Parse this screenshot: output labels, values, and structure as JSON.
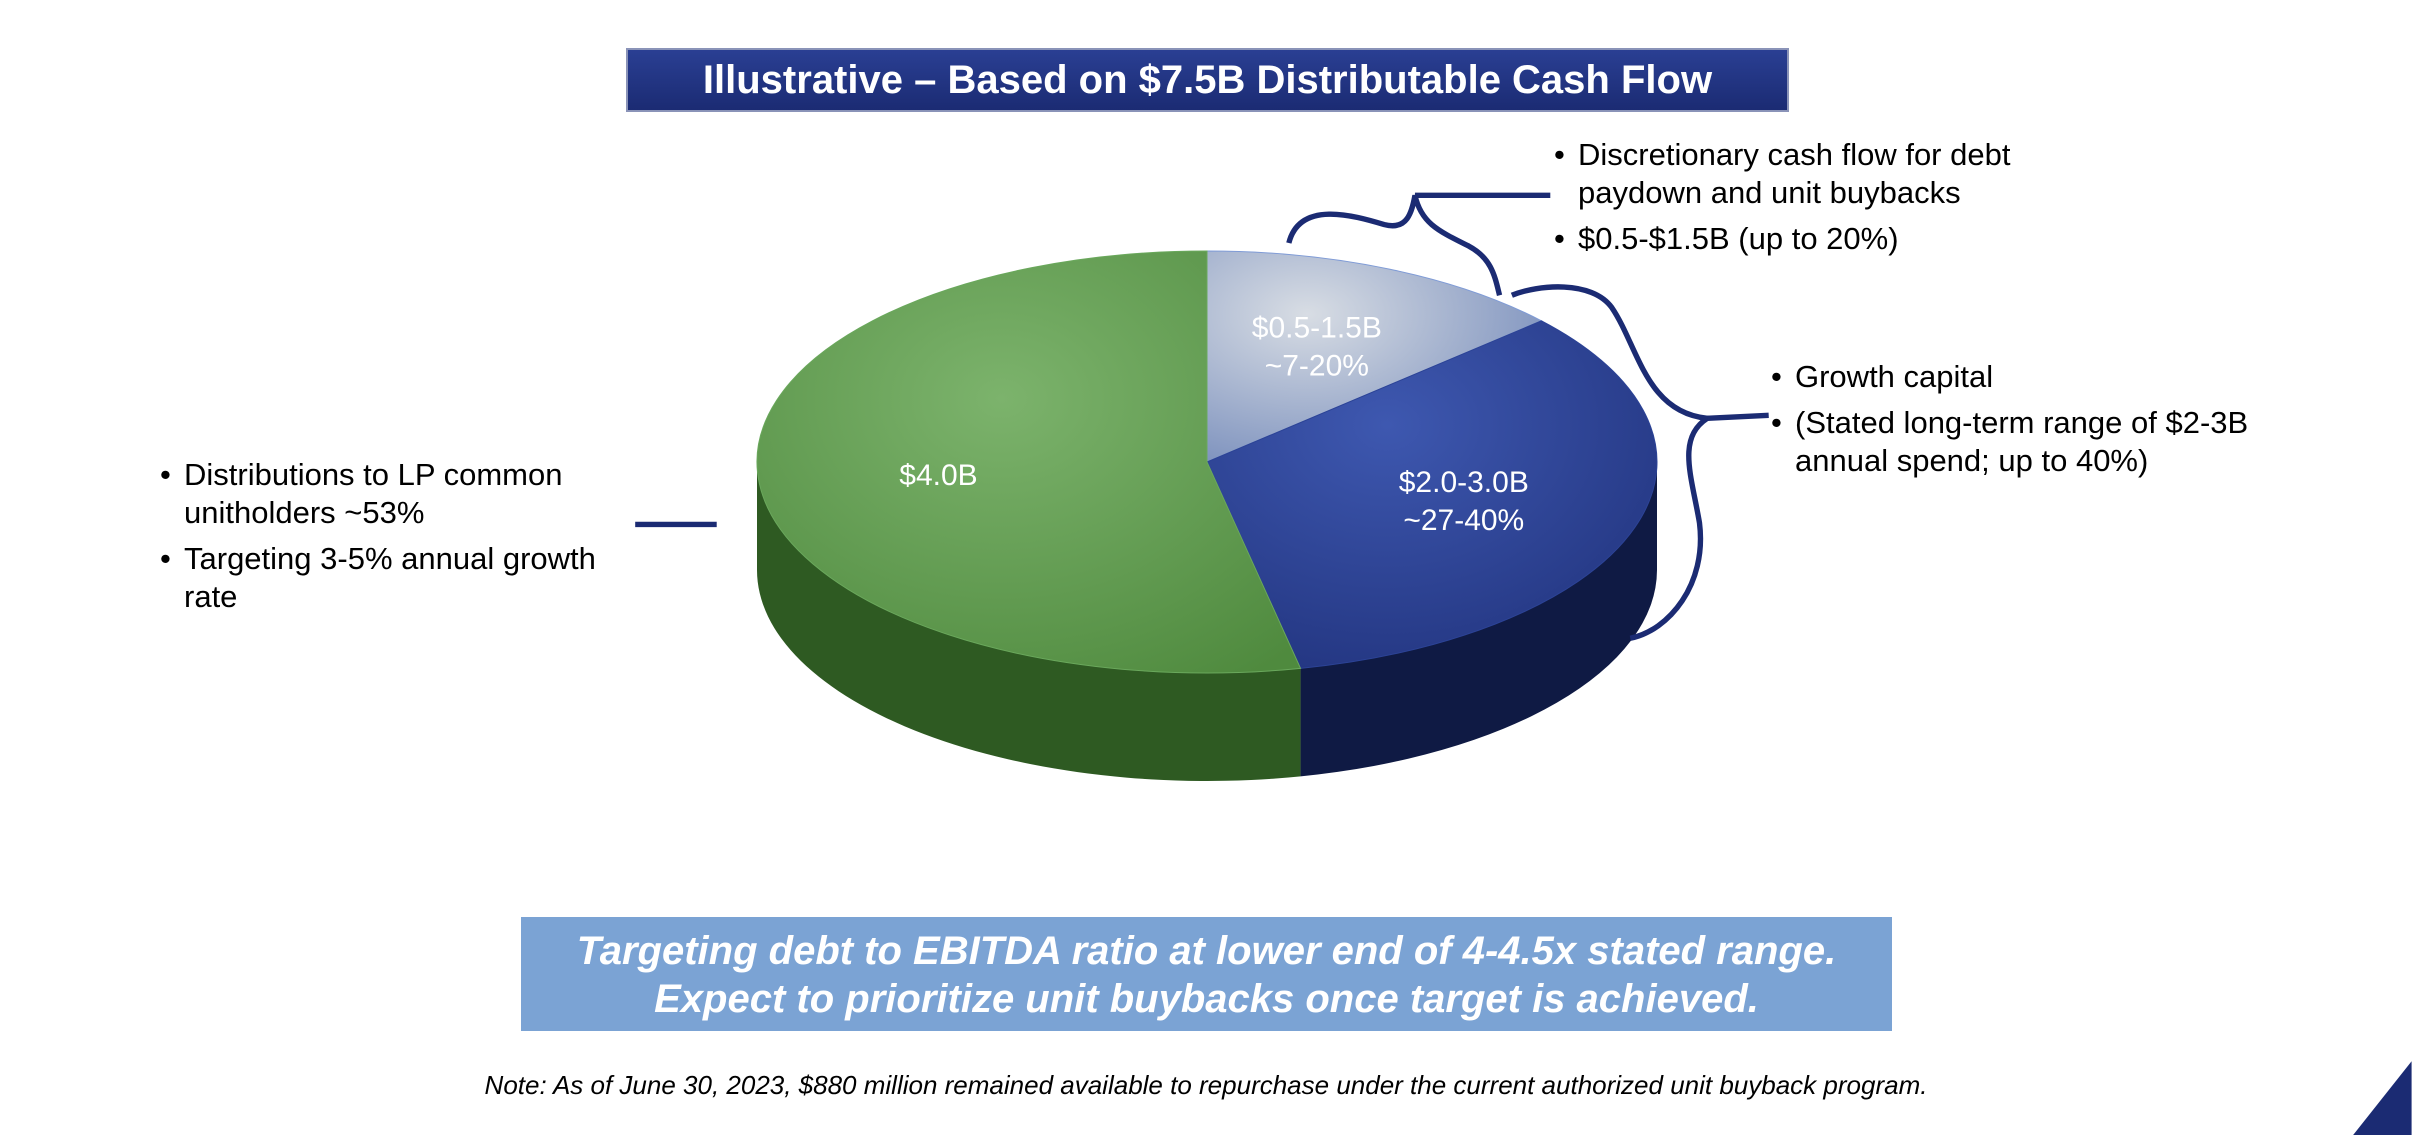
{
  "chart_data": {
    "type": "pie",
    "title": "Illustrative – Based on $7.5B Distributable Cash Flow",
    "values": [
      1.0,
      2.5,
      4.0
    ],
    "value_labels": [
      [
        "$0.5-1.5B",
        "~7-20%"
      ],
      [
        "$2.0-3.0B",
        "~27-40%"
      ],
      [
        "$4.0B"
      ]
    ],
    "colors": [
      "#7f9bd6",
      "#2c4396",
      "#6aa85c"
    ],
    "side_colors": [
      "#3a4f86",
      "#0f1a44",
      "#2e5a22"
    ],
    "annotations": {
      "left": [
        [
          "Distributions to LP common",
          "unitholders ~53%"
        ],
        [
          "Targeting 3-5% annual growth",
          "rate"
        ]
      ],
      "top_right": [
        [
          "Discretionary cash flow for debt",
          "paydown and unit buybacks"
        ],
        [
          "$0.5-$1.5B (up to 20%)"
        ]
      ],
      "right": [
        [
          "Growth capital"
        ],
        [
          "(Stated long-term range of $2-3B",
          "annual spend; up to 40%)"
        ]
      ]
    },
    "banner": [
      "Targeting debt to EBITDA ratio at lower end of 4-4.5x stated range.",
      "Expect to prioritize unit buybacks once target is achieved."
    ],
    "note": "Note: As of June 30, 2023, $880 million remained available to repurchase under the current authorized unit buyback program."
  }
}
